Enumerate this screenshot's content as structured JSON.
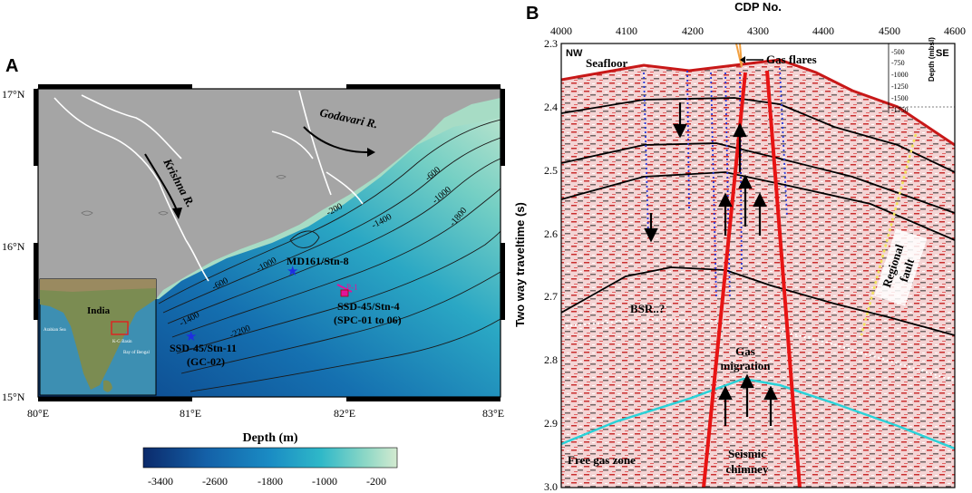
{
  "panelA": {
    "letter": "A",
    "lat_ticks": [
      "17°N",
      "16°N",
      "15°N"
    ],
    "lon_ticks": [
      "80°E",
      "81°E",
      "82°E",
      "83°E"
    ],
    "rivers": {
      "godavari": "Godavari R.",
      "krishna": "Krishna R."
    },
    "contours": [
      "-200",
      "-600",
      "-1000",
      "-1400",
      "-1800",
      "-600",
      "-1000",
      "-1400",
      "-2200"
    ],
    "stations": {
      "md161": "MD161/Stn-8",
      "ssd45_4_line1": "SSD-45/Stn-4",
      "ssd45_4_line2": "(SPC-01 to 06)",
      "ssd45_11_line1": "SSD-45/Stn-11",
      "ssd45_11_line2": "(GC-02)",
      "profile_label": "P-1"
    },
    "inset": {
      "india": "India",
      "arabian_sea": "Arabian Sea",
      "kg_basin": "K-G Basin",
      "bay_of_bengal": "Bay of Bengal"
    },
    "colorbar": {
      "title": "Depth (m)",
      "ticks": [
        "-3400",
        "-2600",
        "-1800",
        "-1000",
        "-200"
      ],
      "colors": [
        "#0b2a6b",
        "#1461a8",
        "#1a8cc4",
        "#2fb8c8",
        "#8fd8c6",
        "#d3ead0"
      ]
    }
  },
  "panelB": {
    "letter": "B",
    "x_title": "CDP No.",
    "x_ticks": [
      "4000",
      "4100",
      "4200",
      "4300",
      "4400",
      "4500",
      "4600"
    ],
    "y_title": "Two way traveltime (s)",
    "y_ticks": [
      "2.3",
      "2.4",
      "2.5",
      "2.6",
      "2.7",
      "2.8",
      "2.9",
      "3.0"
    ],
    "nw": "NW",
    "se": "SE",
    "depth_scale": {
      "title": "Depth (mbsl)",
      "ticks": [
        "-500",
        "-750",
        "-1000",
        "-1250",
        "-1500",
        "-1750"
      ]
    },
    "annotations": {
      "seafloor": "Seafloor",
      "gas_flares": "Gas flares",
      "bsr": "BSR..?",
      "gas_line1": "Gas",
      "gas_line2": "migration",
      "regional_line1": "Regional",
      "regional_line2": "fault",
      "free_gas": "Free gas zone",
      "chimney_line1": "Seismic",
      "chimney_line2": "chimney"
    }
  }
}
